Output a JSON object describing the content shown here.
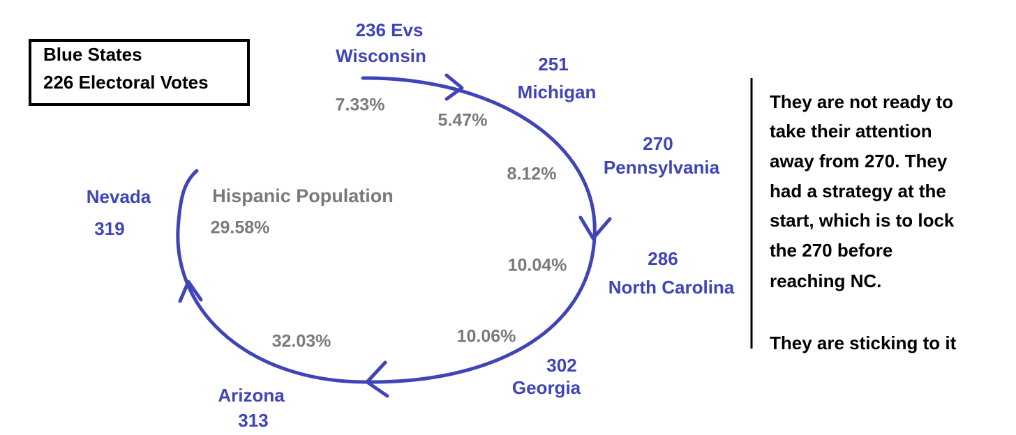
{
  "legend_box": {
    "lines": [
      "Blue States",
      "226 Electoral Votes"
    ]
  },
  "nodes": [
    {
      "votes": "236 Evs",
      "state": "Wisconsin"
    },
    {
      "votes": "251",
      "state": "Michigan"
    },
    {
      "votes": "270",
      "state": "Pennsylvania"
    },
    {
      "votes": "286",
      "state": "North Carolina"
    },
    {
      "votes": "302",
      "state": "Georgia"
    },
    {
      "votes": "313",
      "state": "Arizona"
    },
    {
      "votes": "319",
      "state": "Nevada"
    }
  ],
  "center_label": "Hispanic Population",
  "percentages": [
    "7.33%",
    "5.47%",
    "8.12%",
    "10.04%",
    "10.06%",
    "32.03%",
    "29.58%"
  ],
  "side_note": {
    "lines": [
      "They are not ready to",
      "take their attention",
      "away from 270. They",
      "had a strategy at the",
      "start, which is to lock",
      "the 270 before",
      "reaching NC.",
      "They are sticking to it"
    ]
  }
}
